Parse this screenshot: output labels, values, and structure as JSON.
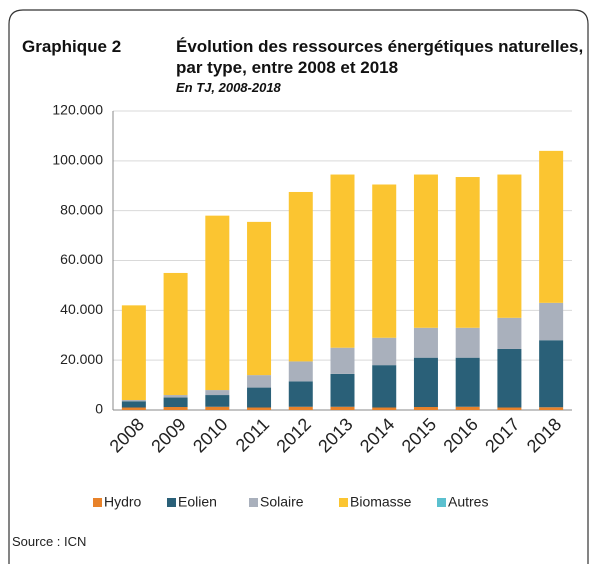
{
  "chart_data": {
    "type": "stacked_bar",
    "label": "Graphique 2",
    "title": "Évolution des ressources énergétiques naturelles, par type, entre 2008 et 2018",
    "subtitle": "En TJ, 2008-2018",
    "source": "Source : ICN",
    "categories": [
      "2008",
      "2009",
      "2010",
      "2011",
      "2012",
      "2013",
      "2014",
      "2015",
      "2016",
      "2017",
      "2018"
    ],
    "series": [
      {
        "name": "Hydro",
        "color": "#e8822a",
        "values": [
          1000,
          1200,
          1300,
          1000,
          1300,
          1300,
          1000,
          1200,
          1300,
          1000,
          1100
        ]
      },
      {
        "name": "Eolien",
        "color": "#2a6078",
        "values": [
          2500,
          3800,
          4700,
          8000,
          10200,
          13200,
          17000,
          19800,
          19700,
          23500,
          26900
        ]
      },
      {
        "name": "Solaire",
        "color": "#a9b0bc",
        "values": [
          500,
          1000,
          2000,
          5000,
          8000,
          10500,
          11000,
          12000,
          12000,
          12500,
          15000
        ]
      },
      {
        "name": "Biomasse",
        "color": "#fbc531",
        "values": [
          38000,
          49000,
          70000,
          61500,
          68000,
          69500,
          61500,
          61500,
          60500,
          57500,
          61000
        ]
      },
      {
        "name": "Autres",
        "color": "#5bc0cf",
        "values": [
          0,
          0,
          0,
          0,
          0,
          0,
          0,
          0,
          0,
          0,
          0
        ]
      }
    ],
    "ylim": [
      0,
      120000
    ],
    "yticks": [
      0,
      {
        "value": 20000,
        "label": "20.000"
      },
      {
        "value": 40000,
        "label": "40.000"
      },
      {
        "value": 60000,
        "label": "60.000"
      },
      {
        "value": 80000,
        "label": "80.000"
      },
      {
        "value": 100000,
        "label": "100.000"
      },
      {
        "value": 120000,
        "label": "120.000"
      }
    ],
    "grid": true,
    "legend": "bottom"
  }
}
